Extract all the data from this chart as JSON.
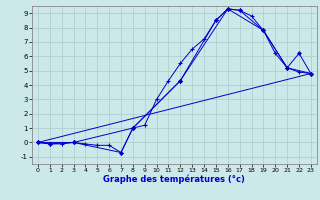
{
  "xlabel": "Graphe des températures (°c)",
  "xlim": [
    -0.5,
    23.5
  ],
  "ylim": [
    -1.5,
    9.5
  ],
  "xticks": [
    0,
    1,
    2,
    3,
    4,
    5,
    6,
    7,
    8,
    9,
    10,
    11,
    12,
    13,
    14,
    15,
    16,
    17,
    18,
    19,
    20,
    21,
    22,
    23
  ],
  "yticks": [
    -1,
    0,
    1,
    2,
    3,
    4,
    5,
    6,
    7,
    8,
    9
  ],
  "bg_color": "#cce8e8",
  "line_color": "#0000cc",
  "grid_color": "#aacccc",
  "line1_x": [
    0,
    1,
    2,
    3,
    4,
    5,
    6,
    7,
    8,
    9,
    10,
    11,
    12,
    13,
    14,
    15,
    16,
    17,
    18,
    19,
    20,
    21,
    22,
    23
  ],
  "line1_y": [
    0.0,
    -0.1,
    -0.1,
    0.0,
    -0.1,
    -0.2,
    -0.2,
    -0.7,
    1.0,
    1.2,
    3.0,
    4.3,
    5.5,
    6.5,
    7.2,
    8.5,
    9.3,
    9.2,
    8.8,
    7.8,
    6.2,
    5.2,
    4.9,
    4.8
  ],
  "line2_x": [
    0,
    3,
    8,
    12,
    15,
    16,
    19,
    21,
    22,
    23
  ],
  "line2_y": [
    0.0,
    0.0,
    1.0,
    4.3,
    8.5,
    9.3,
    7.8,
    5.2,
    6.2,
    4.8
  ],
  "line3_x": [
    0,
    1,
    3,
    7,
    8,
    12,
    16,
    17,
    19,
    21,
    23
  ],
  "line3_y": [
    0.0,
    -0.1,
    0.0,
    -0.7,
    1.0,
    4.3,
    9.3,
    9.2,
    7.8,
    5.2,
    4.8
  ],
  "line4_x": [
    0,
    23
  ],
  "line4_y": [
    0.0,
    4.8
  ]
}
